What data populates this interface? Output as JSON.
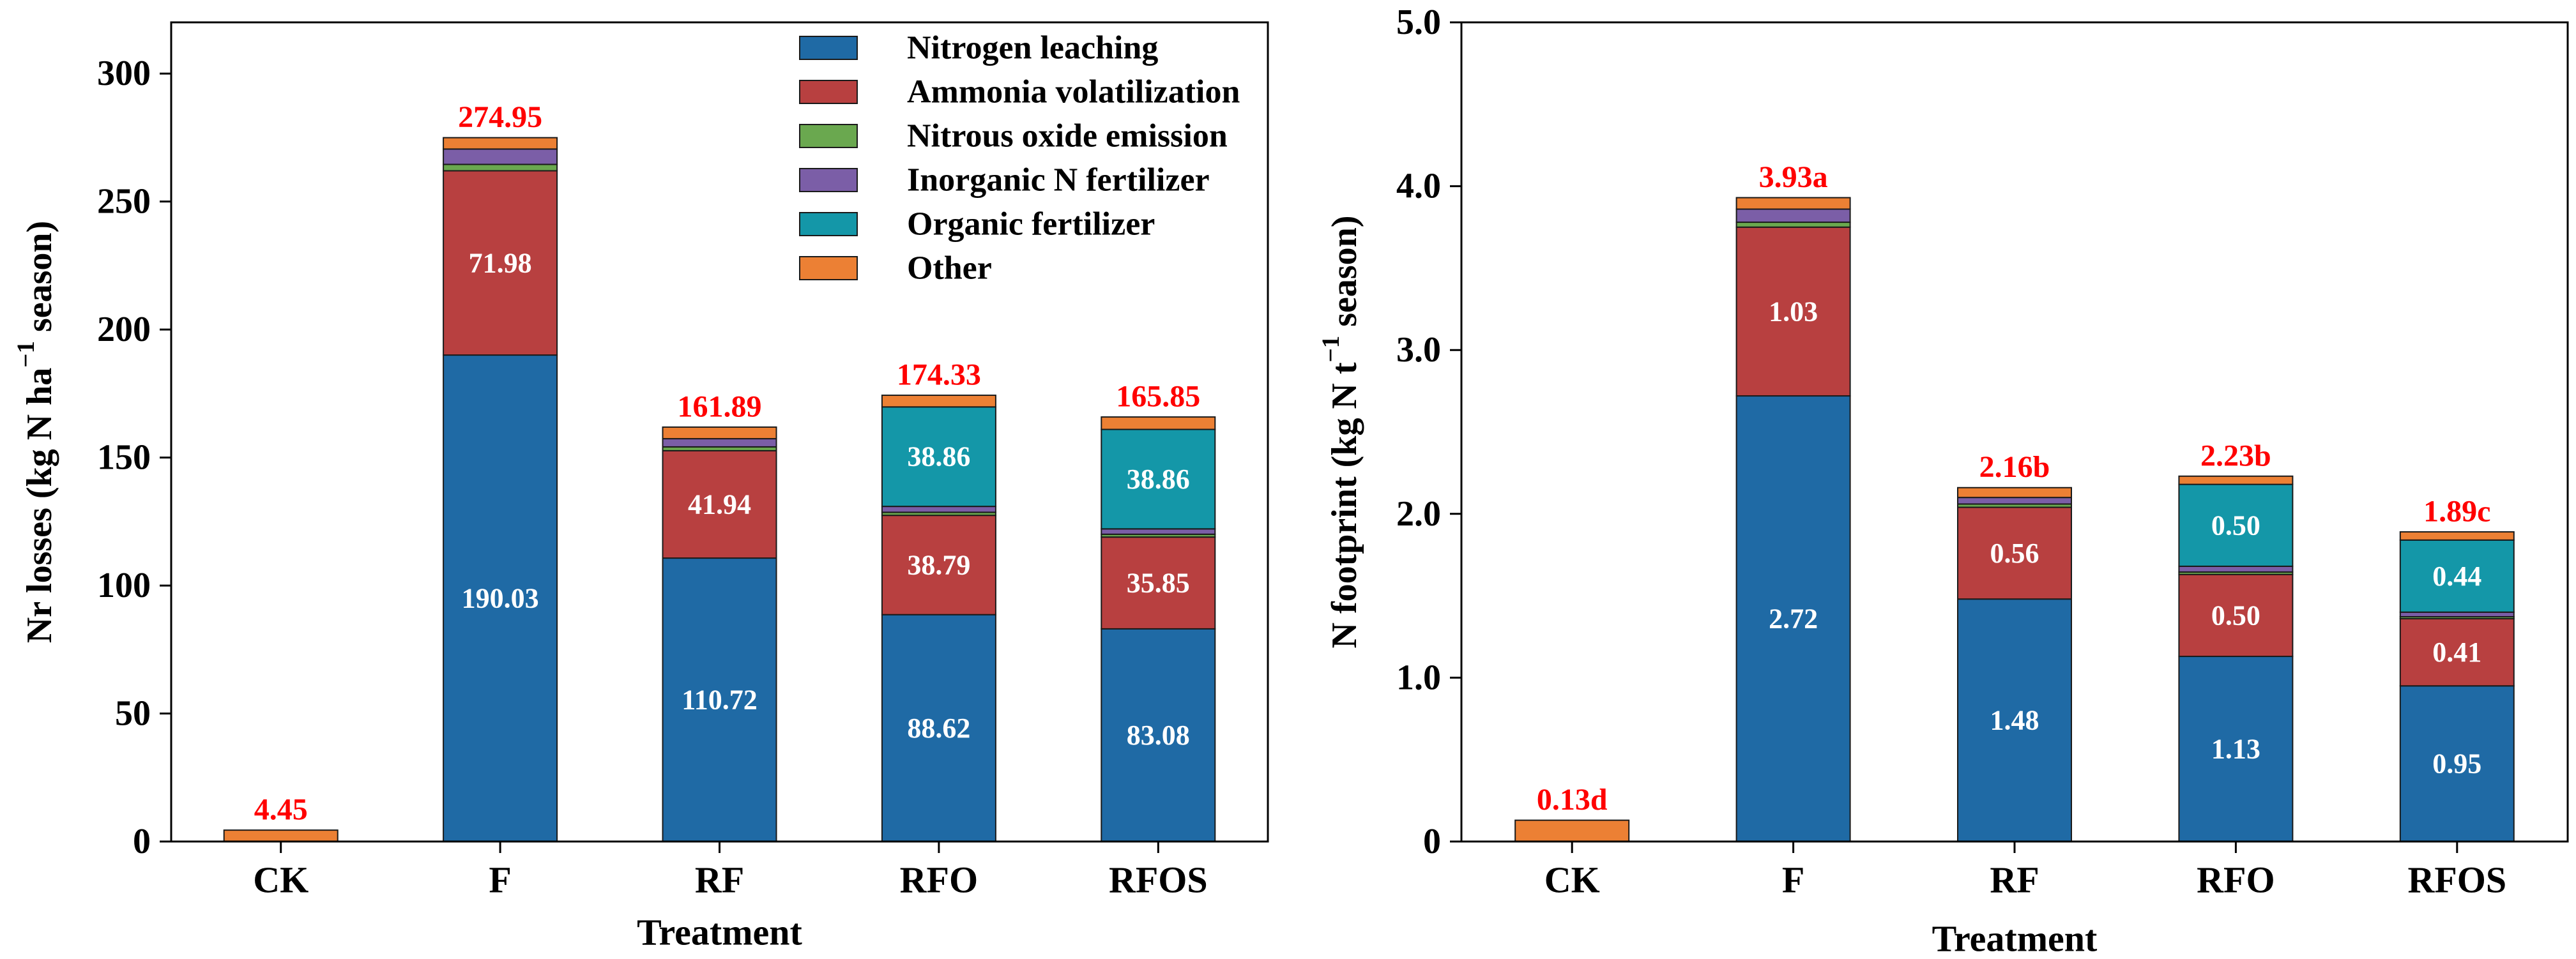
{
  "colors": {
    "nitrogen_leaching": "#1f6aa5",
    "ammonia_volatilization": "#b84040",
    "nitrous_oxide": "#6aa84f",
    "inorganic_n": "#7b5ea7",
    "organic_fertilizer": "#1497a8",
    "other": "#ec8034",
    "total_label": "#ff0000",
    "inner_label": "#ffffff"
  },
  "chart_data": [
    {
      "type": "bar",
      "stacked": true,
      "title": "",
      "xlabel": "Treatment",
      "ylabel_main": "Nr losses (kg N ha",
      "ylabel_sup": "−1",
      "ylabel_tail": " season)",
      "ylim": [
        0,
        320
      ],
      "yticks": [
        0,
        50,
        100,
        150,
        200,
        250,
        300
      ],
      "ytick_labels": [
        "0",
        "50",
        "100",
        "150",
        "200",
        "250",
        "300"
      ],
      "categories": [
        "CK",
        "F",
        "RF",
        "RFO",
        "RFOS"
      ],
      "legend": {
        "position": "top-right",
        "entries": [
          {
            "label": "Nitrogen leaching",
            "color_key": "nitrogen_leaching"
          },
          {
            "label": "Ammonia volatilization",
            "color_key": "ammonia_volatilization"
          },
          {
            "label": "Nitrous oxide emission",
            "color_key": "nitrous_oxide"
          },
          {
            "label": "Inorganic N fertilizer",
            "color_key": "inorganic_n"
          },
          {
            "label": "Organic fertilizer",
            "color_key": "organic_fertilizer"
          },
          {
            "label": "Other",
            "color_key": "other"
          }
        ]
      },
      "series": [
        {
          "name": "Nitrogen leaching",
          "color_key": "nitrogen_leaching",
          "values": [
            0,
            190.03,
            110.72,
            88.62,
            83.08
          ],
          "labels": [
            "",
            "190.03",
            "110.72",
            "88.62",
            "83.08"
          ]
        },
        {
          "name": "Ammonia volatilization",
          "color_key": "ammonia_volatilization",
          "values": [
            0,
            71.98,
            41.94,
            38.79,
            35.85
          ],
          "labels": [
            "",
            "71.98",
            "41.94",
            "38.79",
            "35.85"
          ]
        },
        {
          "name": "Nitrous oxide emission",
          "color_key": "nitrous_oxide",
          "values": [
            0,
            2.5,
            1.5,
            1.2,
            1.1
          ],
          "labels": [
            "",
            "",
            "",
            "",
            ""
          ]
        },
        {
          "name": "Inorganic N fertilizer",
          "color_key": "inorganic_n",
          "values": [
            0,
            6.0,
            3.2,
            2.3,
            2.1
          ],
          "labels": [
            "",
            "",
            "",
            "",
            ""
          ]
        },
        {
          "name": "Organic fertilizer",
          "color_key": "organic_fertilizer",
          "values": [
            0,
            0,
            0,
            38.86,
            38.86
          ],
          "labels": [
            "",
            "",
            "",
            "38.86",
            "38.86"
          ]
        },
        {
          "name": "Other",
          "color_key": "other",
          "values": [
            4.45,
            4.44,
            4.53,
            4.56,
            4.85
          ],
          "labels": [
            "",
            "",
            "",
            "",
            ""
          ]
        }
      ],
      "totals": [
        "4.45",
        "274.95",
        "161.89",
        "174.33",
        "165.85"
      ],
      "total_values": [
        4.45,
        274.95,
        161.89,
        174.33,
        165.85
      ]
    },
    {
      "type": "bar",
      "stacked": true,
      "title": "",
      "xlabel": "Treatment",
      "ylabel_main": "N footprint (kg N t",
      "ylabel_sup": "−1",
      "ylabel_tail": " season)",
      "ylim": [
        0,
        5.0
      ],
      "yticks": [
        0,
        1.0,
        2.0,
        3.0,
        4.0,
        5.0
      ],
      "ytick_labels": [
        "0",
        "1.0",
        "2.0",
        "3.0",
        "4.0",
        "5.0"
      ],
      "categories": [
        "CK",
        "F",
        "RF",
        "RFO",
        "RFOS"
      ],
      "series": [
        {
          "name": "Nitrogen leaching",
          "color_key": "nitrogen_leaching",
          "values": [
            0,
            2.72,
            1.48,
            1.13,
            0.95
          ],
          "labels": [
            "",
            "2.72",
            "1.48",
            "1.13",
            "0.95"
          ]
        },
        {
          "name": "Ammonia volatilization",
          "color_key": "ammonia_volatilization",
          "values": [
            0,
            1.03,
            0.56,
            0.5,
            0.41
          ],
          "labels": [
            "",
            "1.03",
            "0.56",
            "0.50",
            "0.41"
          ]
        },
        {
          "name": "Nitrous oxide emission",
          "color_key": "nitrous_oxide",
          "values": [
            0,
            0.03,
            0.02,
            0.015,
            0.012
          ],
          "labels": [
            "",
            "",
            "",
            "",
            ""
          ]
        },
        {
          "name": "Inorganic N fertilizer",
          "color_key": "inorganic_n",
          "values": [
            0,
            0.08,
            0.04,
            0.035,
            0.028
          ],
          "labels": [
            "",
            "",
            "",
            "",
            ""
          ]
        },
        {
          "name": "Organic fertilizer",
          "color_key": "organic_fertilizer",
          "values": [
            0,
            0,
            0,
            0.5,
            0.44
          ],
          "labels": [
            "",
            "",
            "",
            "0.50",
            "0.44"
          ]
        },
        {
          "name": "Other",
          "color_key": "other",
          "values": [
            0.13,
            0.07,
            0.06,
            0.05,
            0.05
          ],
          "labels": [
            "",
            "",
            "",
            "",
            ""
          ]
        }
      ],
      "totals": [
        "0.13d",
        "3.93a",
        "2.16b",
        "2.23b",
        "1.89c"
      ],
      "total_values": [
        0.13,
        3.93,
        2.16,
        2.23,
        1.89
      ]
    }
  ]
}
